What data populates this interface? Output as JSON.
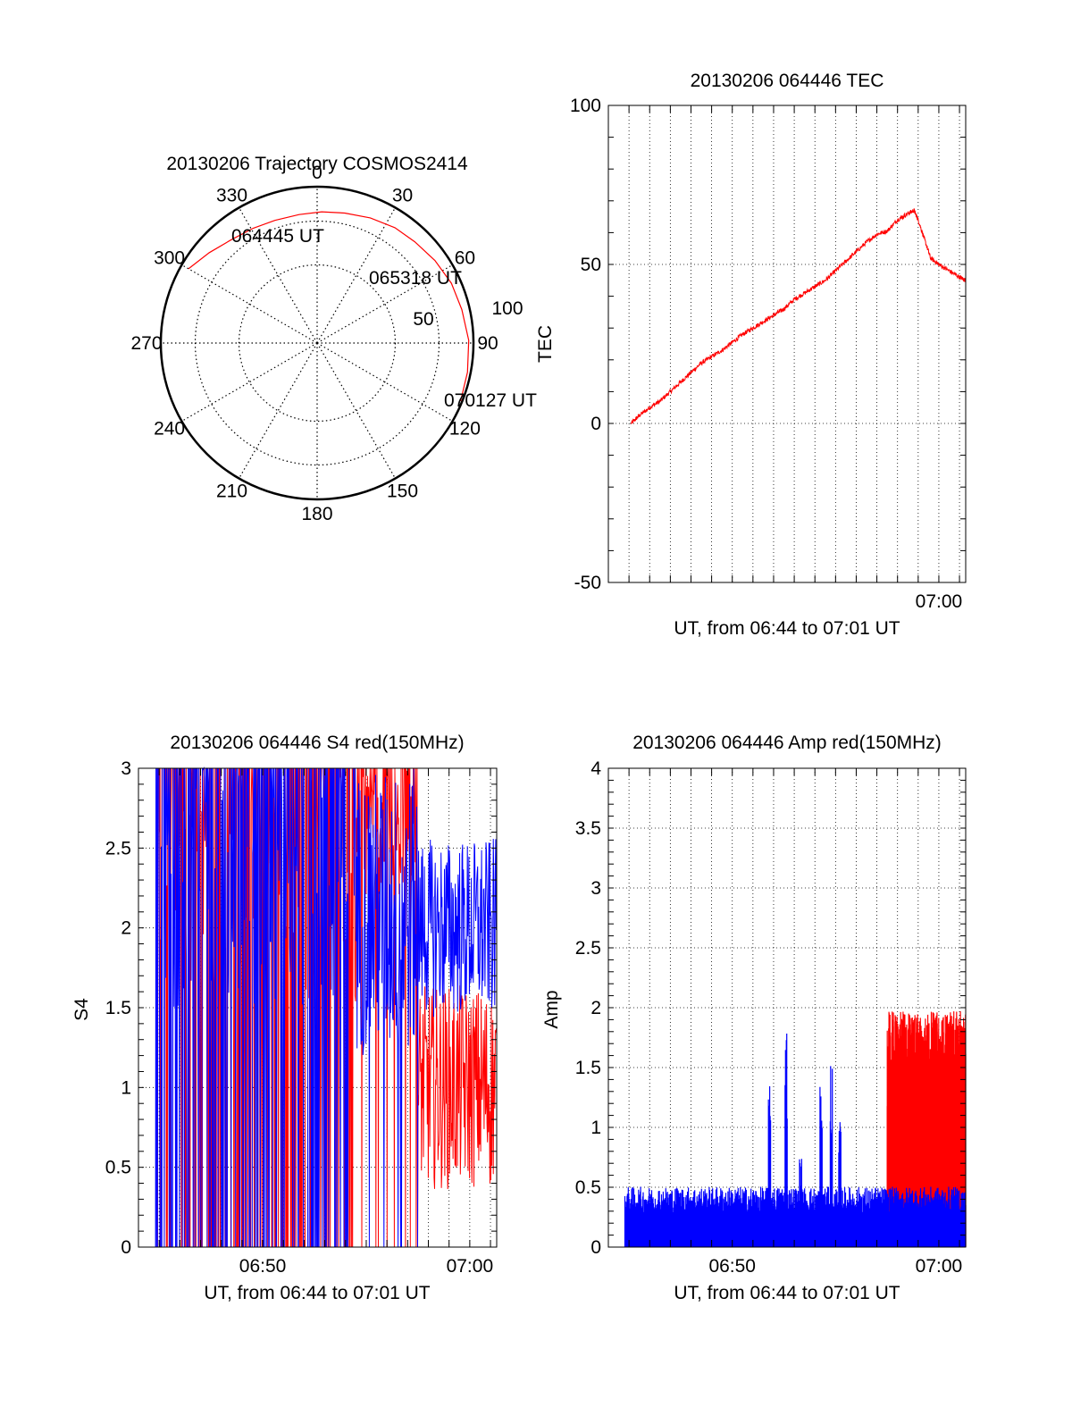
{
  "chart_data": [
    {
      "id": "polar",
      "type": "polar-trajectory",
      "title": "20130206 Trajectory COSMOS2414",
      "azimuth_labels": [
        "0",
        "30",
        "60",
        "90",
        "120",
        "150",
        "180",
        "210",
        "240",
        "270",
        "300",
        "330"
      ],
      "radial_labels": [
        "50",
        "100"
      ],
      "radial_range": [
        0,
        100
      ],
      "trajectory": {
        "color": "#ff0000",
        "points": [
          {
            "az": 300,
            "r": 95
          },
          {
            "az": 310,
            "r": 90
          },
          {
            "az": 320,
            "r": 86
          },
          {
            "az": 331,
            "r": 84
          },
          {
            "az": 341,
            "r": 83
          },
          {
            "az": 352,
            "r": 83
          },
          {
            "az": 2,
            "r": 84
          },
          {
            "az": 12,
            "r": 85
          },
          {
            "az": 23,
            "r": 87
          },
          {
            "az": 34,
            "r": 89
          },
          {
            "az": 44,
            "r": 90
          },
          {
            "az": 55,
            "r": 92
          },
          {
            "az": 66,
            "r": 94
          },
          {
            "az": 77,
            "r": 95
          },
          {
            "az": 89,
            "r": 97
          },
          {
            "az": 101,
            "r": 98
          },
          {
            "az": 112,
            "r": 99
          }
        ],
        "labels": [
          "064445 UT",
          "065318 UT",
          "070127 UT"
        ]
      }
    },
    {
      "id": "tec",
      "type": "line",
      "title": "20130206 064446 TEC",
      "xlabel": "UT, from 06:44 to 07:01 UT",
      "ylabel": "TEC",
      "xlim": [
        44.0,
        61.3
      ],
      "ylim": [
        -50,
        100
      ],
      "xticks": [
        {
          "v": 60,
          "label": "07:00"
        }
      ],
      "yticks": [
        {
          "v": -50,
          "label": "-50"
        },
        {
          "v": 0,
          "label": "0"
        },
        {
          "v": 50,
          "label": "50"
        },
        {
          "v": 100,
          "label": "100"
        }
      ],
      "series": [
        {
          "name": "TEC",
          "color": "#ff0000",
          "x": [
            45.1,
            45.5,
            46.0,
            46.5,
            47.0,
            47.5,
            48.0,
            48.5,
            49.0,
            49.5,
            50.0,
            50.5,
            51.0,
            51.5,
            52.0,
            52.5,
            53.0,
            53.5,
            54.0,
            54.5,
            55.0,
            55.5,
            56.0,
            56.5,
            57.0,
            57.5,
            58.0,
            58.5,
            58.8,
            59.0,
            59.3,
            59.6,
            60.0,
            60.5,
            61.0,
            61.3
          ],
          "y": [
            0,
            2.5,
            5,
            7,
            10,
            13,
            16,
            19,
            21,
            23,
            25.5,
            28,
            30,
            32,
            34,
            36,
            39,
            41,
            43,
            45,
            48,
            51,
            54,
            57,
            59.5,
            60.5,
            64,
            66,
            67,
            64,
            58,
            52,
            50,
            48,
            46,
            45
          ]
        }
      ]
    },
    {
      "id": "s4",
      "type": "line",
      "title": "20130206 064446 S4 red(150MHz)",
      "xlabel": "UT, from 06:44 to 07:01 UT",
      "ylabel": "S4",
      "xlim": [
        44.0,
        61.3
      ],
      "ylim": [
        0,
        3
      ],
      "xticks": [
        {
          "v": 50,
          "label": "06:50"
        },
        {
          "v": 60,
          "label": "07:00"
        }
      ],
      "yticks": [
        {
          "v": 0,
          "label": "0"
        },
        {
          "v": 0.5,
          "label": "0.5"
        },
        {
          "v": 1,
          "label": "1"
        },
        {
          "v": 1.5,
          "label": "1.5"
        },
        {
          "v": 2,
          "label": "2"
        },
        {
          "v": 2.5,
          "label": "2.5"
        },
        {
          "v": 3,
          "label": "3"
        }
      ],
      "series": [
        {
          "name": "red",
          "color": "#ff0000",
          "x_range": [
            44.9,
            61.3
          ],
          "level_start": 0.0,
          "level_end": 1.0,
          "noise": 0.8,
          "clip": 3
        },
        {
          "name": "blue",
          "color": "#0000ff",
          "x_range": [
            44.8,
            61.3
          ],
          "level_start": 0.0,
          "level_end": 2.4,
          "noise": 0.7,
          "clip": 3
        }
      ]
    },
    {
      "id": "amp",
      "type": "line",
      "title": "20130206 064446 Amp red(150MHz)",
      "xlabel": "UT, from 06:44 to 07:01 UT",
      "ylabel": "Amp",
      "xlim": [
        44.0,
        61.3
      ],
      "ylim": [
        0,
        4
      ],
      "xticks": [
        {
          "v": 50,
          "label": "06:50"
        },
        {
          "v": 60,
          "label": "07:00"
        }
      ],
      "yticks": [
        {
          "v": 0,
          "label": "0"
        },
        {
          "v": 0.5,
          "label": "0.5"
        },
        {
          "v": 1,
          "label": "1"
        },
        {
          "v": 1.5,
          "label": "1.5"
        },
        {
          "v": 2,
          "label": "2"
        },
        {
          "v": 2.5,
          "label": "2.5"
        },
        {
          "v": 3,
          "label": "3"
        },
        {
          "v": 3.5,
          "label": "3.5"
        },
        {
          "v": 4,
          "label": "4"
        }
      ],
      "series": [
        {
          "name": "red",
          "color": "#ff0000",
          "x_range": [
            57.5,
            61.3
          ],
          "level": 1.2,
          "noise": 0.5
        },
        {
          "name": "blue",
          "color": "#0000ff",
          "x_range": [
            44.8,
            61.3
          ],
          "level": 0.35,
          "noise": 0.1,
          "spikes": [
            {
              "x": 51.8,
              "y": 1.35
            },
            {
              "x": 52.6,
              "y": 1.9
            },
            {
              "x": 53.3,
              "y": 0.75
            },
            {
              "x": 54.3,
              "y": 1.4
            },
            {
              "x": 54.8,
              "y": 1.6
            },
            {
              "x": 55.2,
              "y": 1.05
            }
          ]
        }
      ]
    }
  ]
}
